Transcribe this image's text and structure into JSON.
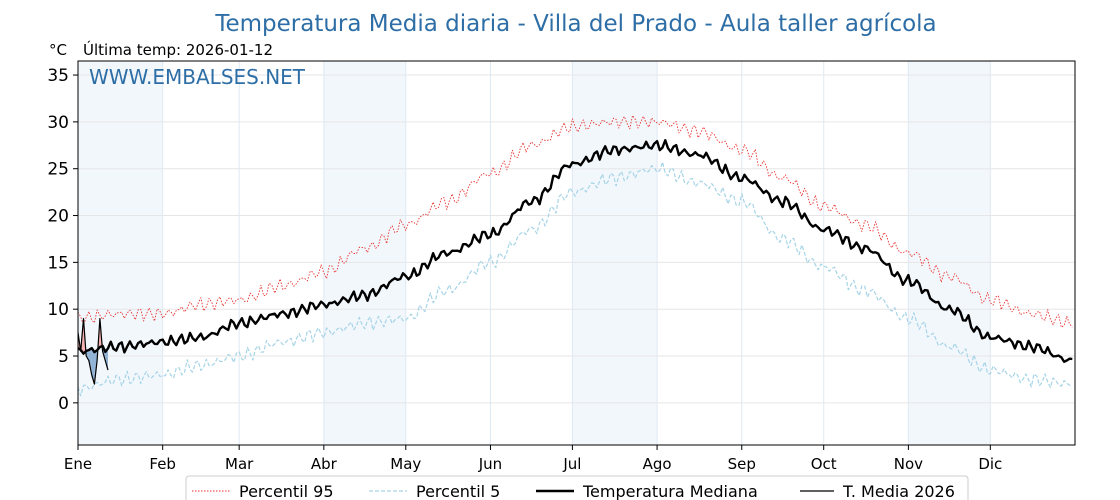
{
  "chart_data": {
    "type": "line",
    "title": "Temperatura Media diaria - Villa del Prado - Aula taller agrícola",
    "unit_label": "°C",
    "last_temp_label": "Última temp: 2026-01-12",
    "watermark": "WWW.EMBALSES.NET",
    "xlabel": "",
    "ylabel": "°C",
    "ylim": [
      -4.5,
      36.5
    ],
    "xlim": [
      0,
      365
    ],
    "yticks": [
      0,
      5,
      10,
      15,
      20,
      25,
      30,
      35
    ],
    "months": [
      {
        "label": "Ene",
        "start": 0
      },
      {
        "label": "Feb",
        "start": 31
      },
      {
        "label": "Mar",
        "start": 59
      },
      {
        "label": "Abr",
        "start": 90
      },
      {
        "label": "May",
        "start": 120
      },
      {
        "label": "Jun",
        "start": 151
      },
      {
        "label": "Jul",
        "start": 181
      },
      {
        "label": "Ago",
        "start": 212
      },
      {
        "label": "Sep",
        "start": 243
      },
      {
        "label": "Oct",
        "start": 273
      },
      {
        "label": "Nov",
        "start": 304
      },
      {
        "label": "Dic",
        "start": 334
      }
    ],
    "shaded_month_bands": [
      [
        0,
        31
      ],
      [
        90,
        120
      ],
      [
        181,
        212
      ],
      [
        304,
        334
      ]
    ],
    "grid": true,
    "legend_position": "bottom-center",
    "x_key_days": [
      0,
      15,
      31,
      45,
      59,
      75,
      90,
      105,
      120,
      135,
      151,
      166,
      181,
      196,
      212,
      227,
      243,
      258,
      273,
      288,
      304,
      319,
      334,
      349,
      364
    ],
    "series": [
      {
        "name": "Percentil 95",
        "color": "#e8322f",
        "style": "dotted",
        "values": [
          9.0,
          9.5,
          9.5,
          10.5,
          11.0,
          12.5,
          14.0,
          16.5,
          19.0,
          21.5,
          24.5,
          27.5,
          29.5,
          30.0,
          30.0,
          29.0,
          27.0,
          24.0,
          21.0,
          19.0,
          16.0,
          13.5,
          11.0,
          9.5,
          8.5
        ]
      },
      {
        "name": "Percentil 5",
        "color": "#a6d4e6",
        "style": "dashed",
        "values": [
          1.5,
          2.5,
          3.0,
          4.0,
          5.0,
          6.5,
          7.5,
          8.5,
          9.0,
          12.0,
          15.0,
          18.5,
          22.5,
          24.0,
          25.0,
          23.5,
          21.5,
          17.5,
          14.5,
          12.0,
          9.0,
          6.0,
          3.5,
          2.5,
          2.0
        ]
      },
      {
        "name": "Temperatura Mediana",
        "color": "#000000",
        "style": "solid-thick",
        "values": [
          5.5,
          6.0,
          6.5,
          7.0,
          8.5,
          9.5,
          10.5,
          11.5,
          13.5,
          16.0,
          18.0,
          21.5,
          25.5,
          27.0,
          27.5,
          26.5,
          24.0,
          21.5,
          18.5,
          16.5,
          13.0,
          10.0,
          7.0,
          6.0,
          4.5
        ]
      },
      {
        "name": "T. Media 2026",
        "color": "#000000",
        "style": "solid-thin",
        "x": [
          0,
          1,
          2,
          3,
          4,
          5,
          6,
          7,
          8,
          9,
          10,
          11
        ],
        "values": [
          7.5,
          5.5,
          9.0,
          5.0,
          4.5,
          3.0,
          2.0,
          4.5,
          9.0,
          5.5,
          4.5,
          3.5
        ]
      }
    ],
    "fills": {
      "above_median_color": "#f4a6a6",
      "below_median_color": "#7fa6cc"
    }
  }
}
